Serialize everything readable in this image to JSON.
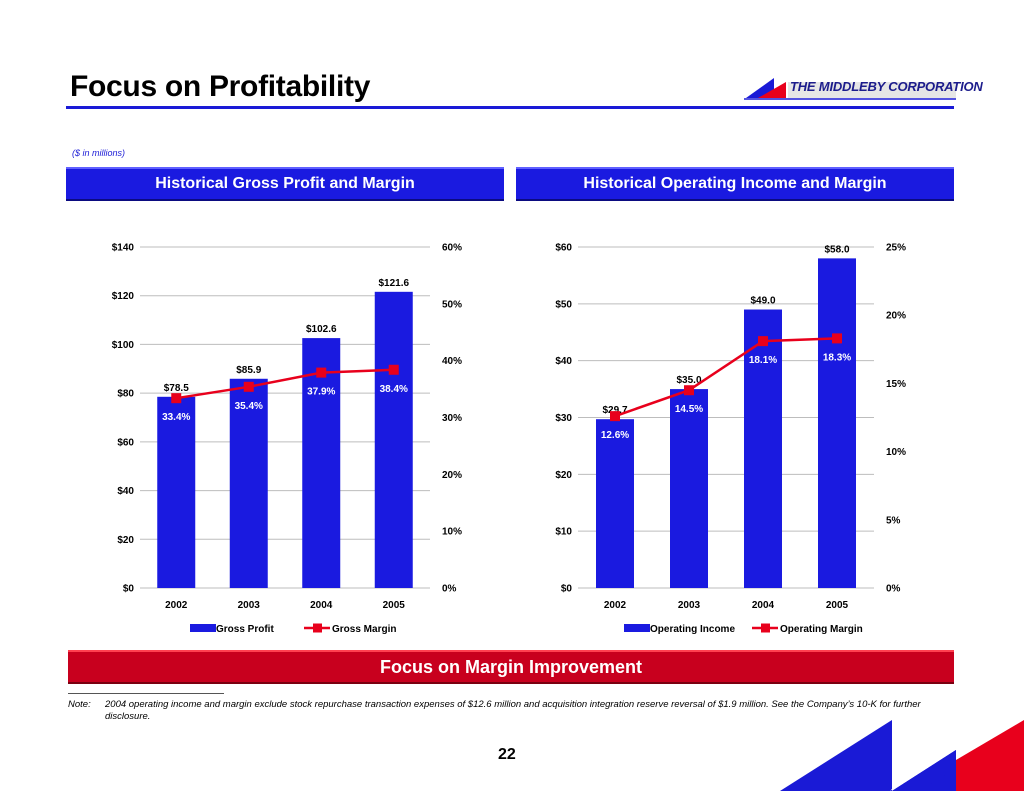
{
  "header": {
    "title": "Focus on Profitability",
    "logo_text": "THE MIDDLEBY CORPORATION",
    "units_note": "($ in millions)"
  },
  "panels": {
    "left_title": "Historical Gross Profit and Margin",
    "right_title": "Historical Operating Income and Margin"
  },
  "banner": "Focus on Margin Improvement",
  "note": {
    "label": "Note:",
    "text": "2004 operating income and margin exclude stock repurchase transaction expenses of $12.6 million and acquisition integration reserve reversal of $1.9 million.  See the Company’s 10-K for further disclosure."
  },
  "page_number": "22",
  "colors": {
    "bar": "#1a1ae0",
    "line": "#e8001c",
    "header": "#1a1ae0",
    "banner": "#c8001e"
  },
  "chart_data": [
    {
      "type": "bar",
      "categories": [
        "2002",
        "2003",
        "2004",
        "2005"
      ],
      "series": [
        {
          "name": "Gross Profit",
          "values": [
            78.5,
            85.9,
            102.6,
            121.6
          ],
          "labels": [
            "$78.5",
            "$85.9",
            "$102.6",
            "$121.6"
          ],
          "axis": "left"
        },
        {
          "name": "Gross Margin",
          "type": "line",
          "values": [
            33.4,
            35.4,
            37.9,
            38.4
          ],
          "labels": [
            "33.4%",
            "35.4%",
            "37.9%",
            "38.4%"
          ],
          "axis": "right"
        }
      ],
      "y_left": {
        "min": 0,
        "max": 140,
        "ticks": [
          "$0",
          "$20",
          "$40",
          "$60",
          "$80",
          "$100",
          "$120",
          "$140"
        ]
      },
      "y_right": {
        "min": 0,
        "max": 60,
        "ticks": [
          "0%",
          "10%",
          "20%",
          "30%",
          "40%",
          "50%",
          "60%"
        ]
      },
      "grid": true,
      "legend": "bottom"
    },
    {
      "type": "bar",
      "categories": [
        "2002",
        "2003",
        "2004",
        "2005"
      ],
      "series": [
        {
          "name": "Operating Income",
          "values": [
            29.7,
            35.0,
            49.0,
            58.0
          ],
          "labels": [
            "$29.7",
            "$35.0",
            "$49.0",
            "$58.0"
          ],
          "axis": "left"
        },
        {
          "name": "Operating Margin",
          "type": "line",
          "values": [
            12.6,
            14.5,
            18.1,
            18.3
          ],
          "labels": [
            "12.6%",
            "14.5%",
            "18.1%",
            "18.3%"
          ],
          "axis": "right"
        }
      ],
      "y_left": {
        "min": 0,
        "max": 60,
        "ticks": [
          "$0",
          "$10",
          "$20",
          "$30",
          "$40",
          "$50",
          "$60"
        ]
      },
      "y_right": {
        "min": 0,
        "max": 25,
        "ticks": [
          "0%",
          "5%",
          "10%",
          "15%",
          "20%",
          "25%"
        ]
      },
      "grid": true,
      "legend": "bottom"
    }
  ]
}
